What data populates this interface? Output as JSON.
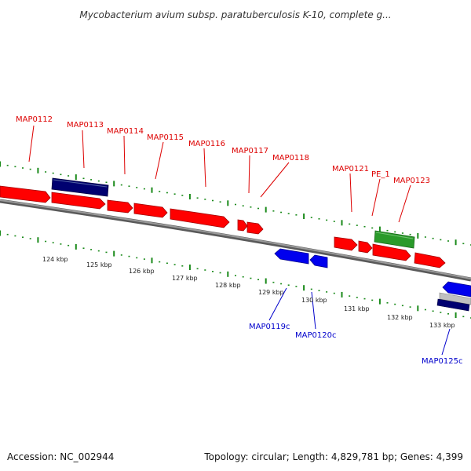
{
  "title": "Mycobacterium avium subsp. paratuberculosis K-10, complete g...",
  "footer": {
    "accession": "Accession: NC_002944",
    "summary": "Topology: circular; Length: 4,829,781 bp; Genes: 4,399"
  },
  "colors": {
    "forward_gene": "#ff0000",
    "reverse_gene": "#0000ee",
    "dark_gene": "#000070",
    "rna_gene": "#2a9a2a",
    "backbone": "#808080",
    "tick": "#1a8a1a",
    "forward_label": "#dd0000",
    "reverse_label": "#0000cc"
  },
  "scale_labels": [
    "124 kbp",
    "125 kbp",
    "126 kbp",
    "127 kbp",
    "128 kbp",
    "129 kbp",
    "130 kbp",
    "131 kbp",
    "132 kbp",
    "133 kbp"
  ],
  "forward_labels": [
    "MAP0112",
    "MAP0113",
    "MAP0114",
    "MAP0115",
    "MAP0116",
    "MAP0117",
    "MAP0118",
    "MAP0121",
    "PE_1",
    "MAP0123"
  ],
  "reverse_labels": [
    "MAP0119c",
    "MAP0120c",
    "MAP0125c"
  ]
}
